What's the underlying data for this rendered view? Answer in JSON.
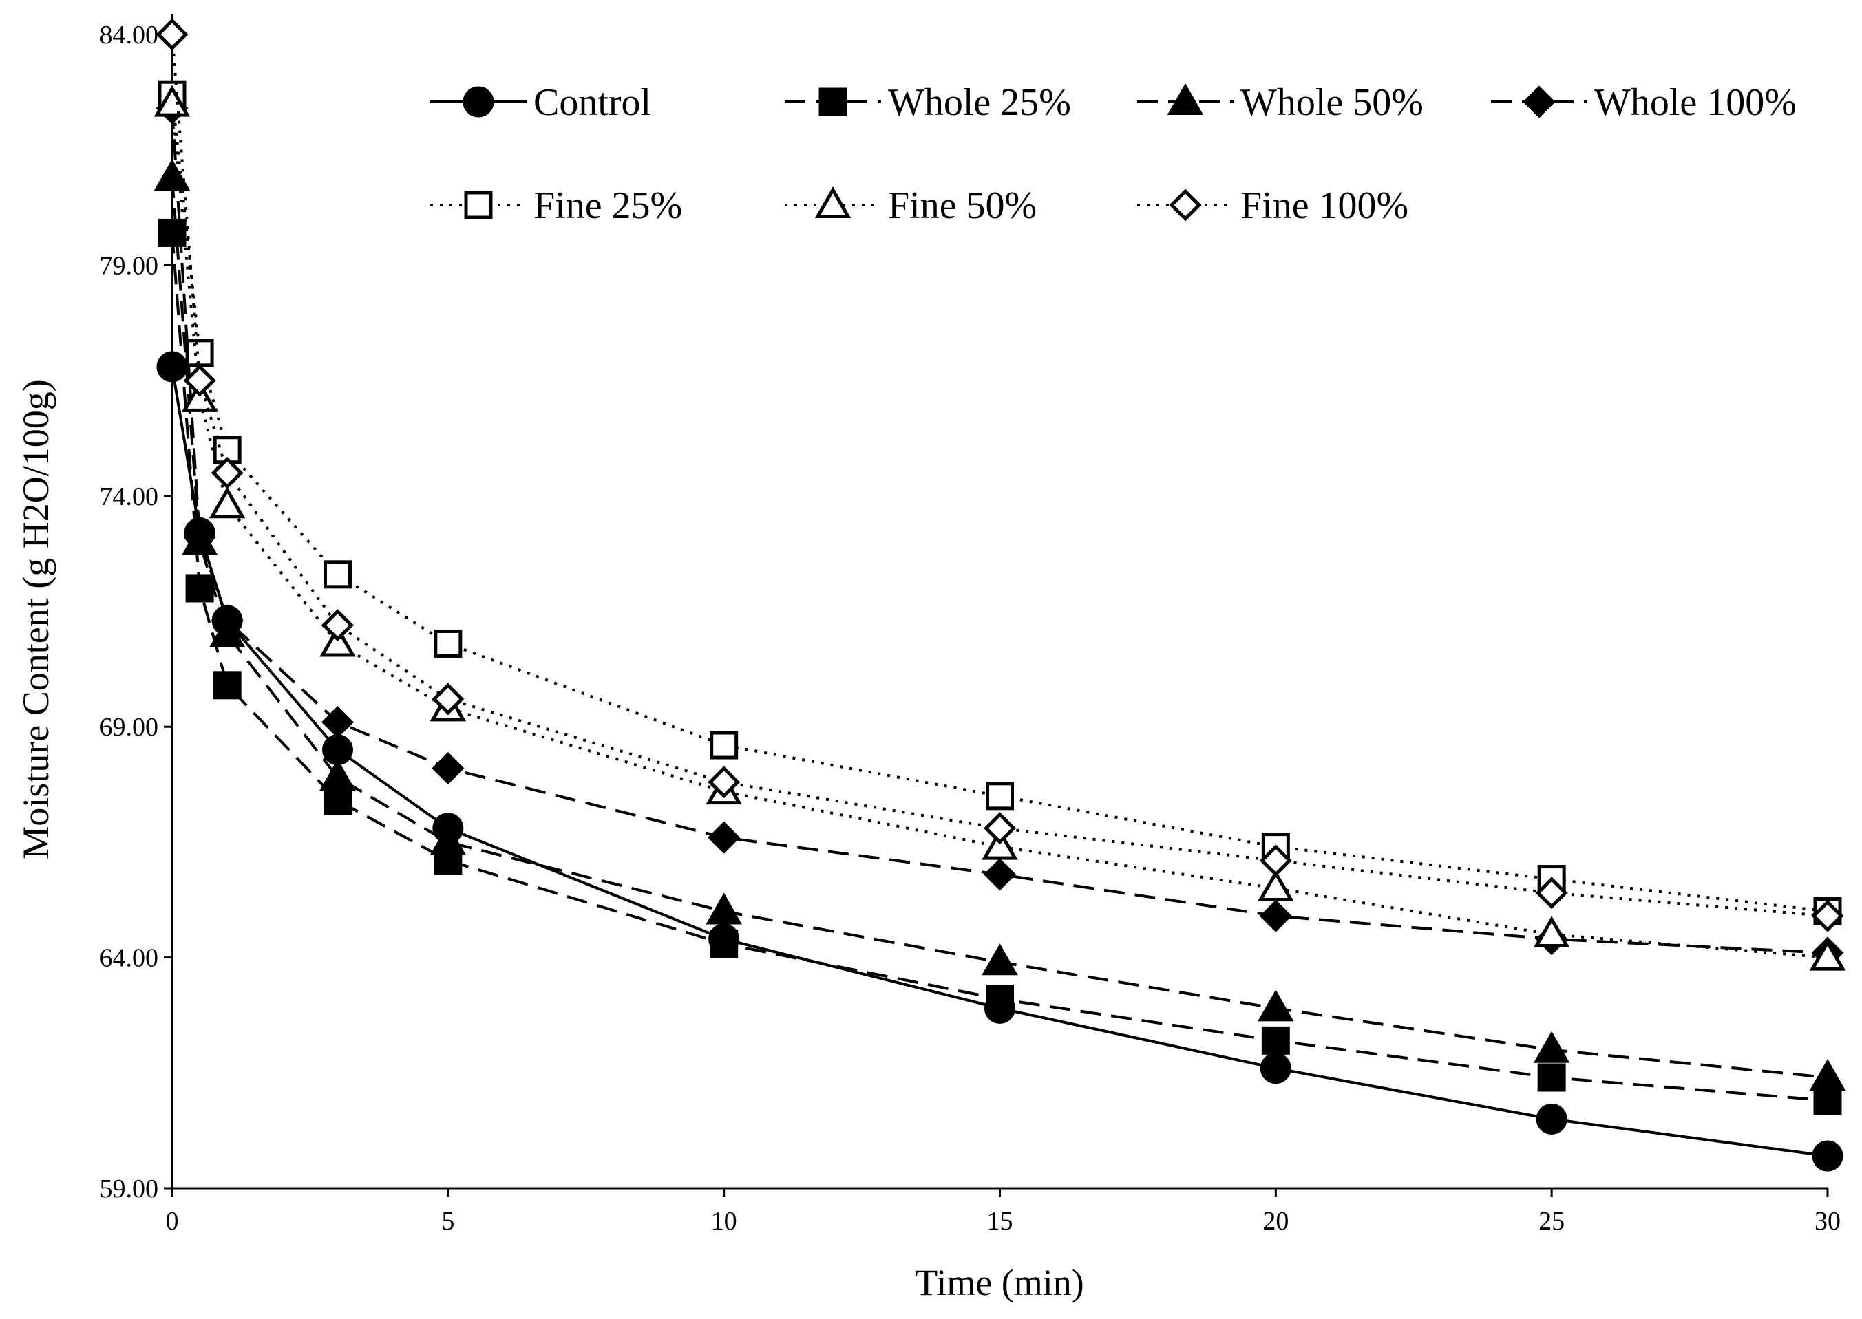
{
  "chart_data": {
    "type": "line",
    "title": "",
    "xlabel": "Time (min)",
    "ylabel": "Moisture Content (g H2O/100g)",
    "x": [
      0,
      0.5,
      1,
      3,
      5,
      10,
      15,
      20,
      25,
      30
    ],
    "xlim": [
      0,
      30
    ],
    "ylim": [
      59,
      84
    ],
    "x_ticks": [
      0,
      5,
      10,
      15,
      20,
      25,
      30
    ],
    "x_tick_labels": [
      "0",
      "5",
      "10",
      "15",
      "20",
      "25",
      "30"
    ],
    "y_ticks": [
      59,
      64,
      69,
      74,
      79,
      84
    ],
    "y_tick_labels": [
      "59.00",
      "64.00",
      "69.00",
      "74.00",
      "79.00",
      "84.00"
    ],
    "grid": false,
    "legend_position": "top",
    "series": [
      {
        "name": "Control",
        "line": "solid",
        "marker": "circle",
        "filled": true,
        "values": [
          76.8,
          73.2,
          71.3,
          68.5,
          66.8,
          64.4,
          62.9,
          61.6,
          60.5,
          59.7
        ]
      },
      {
        "name": "Whole 25%",
        "line": "dashed",
        "marker": "square",
        "filled": true,
        "values": [
          79.7,
          72.0,
          69.9,
          67.4,
          66.1,
          64.3,
          63.1,
          62.2,
          61.4,
          60.9
        ]
      },
      {
        "name": "Whole 50%",
        "line": "dashed",
        "marker": "triangle",
        "filled": true,
        "values": [
          80.9,
          73.0,
          71.0,
          67.9,
          66.5,
          65.0,
          63.9,
          62.9,
          62.0,
          61.4
        ]
      },
      {
        "name": "Whole 100%",
        "line": "dashed",
        "marker": "diamond",
        "filled": true,
        "values": [
          82.4,
          73.1,
          71.3,
          69.1,
          68.1,
          66.6,
          65.8,
          64.9,
          64.4,
          64.1
        ]
      },
      {
        "name": "Fine 25%",
        "line": "dotted",
        "marker": "square",
        "filled": false,
        "values": [
          82.7,
          77.1,
          75.0,
          72.3,
          70.8,
          68.6,
          67.5,
          66.4,
          65.7,
          65.0
        ]
      },
      {
        "name": "Fine 50%",
        "line": "dotted",
        "marker": "triangle",
        "filled": false,
        "values": [
          82.5,
          76.1,
          73.8,
          70.8,
          69.4,
          67.6,
          66.4,
          65.5,
          64.5,
          64.0
        ]
      },
      {
        "name": "Fine 100%",
        "line": "dotted",
        "marker": "diamond",
        "filled": false,
        "values": [
          84.0,
          76.5,
          74.5,
          71.2,
          69.6,
          67.8,
          66.8,
          66.1,
          65.4,
          64.9
        ]
      }
    ]
  }
}
